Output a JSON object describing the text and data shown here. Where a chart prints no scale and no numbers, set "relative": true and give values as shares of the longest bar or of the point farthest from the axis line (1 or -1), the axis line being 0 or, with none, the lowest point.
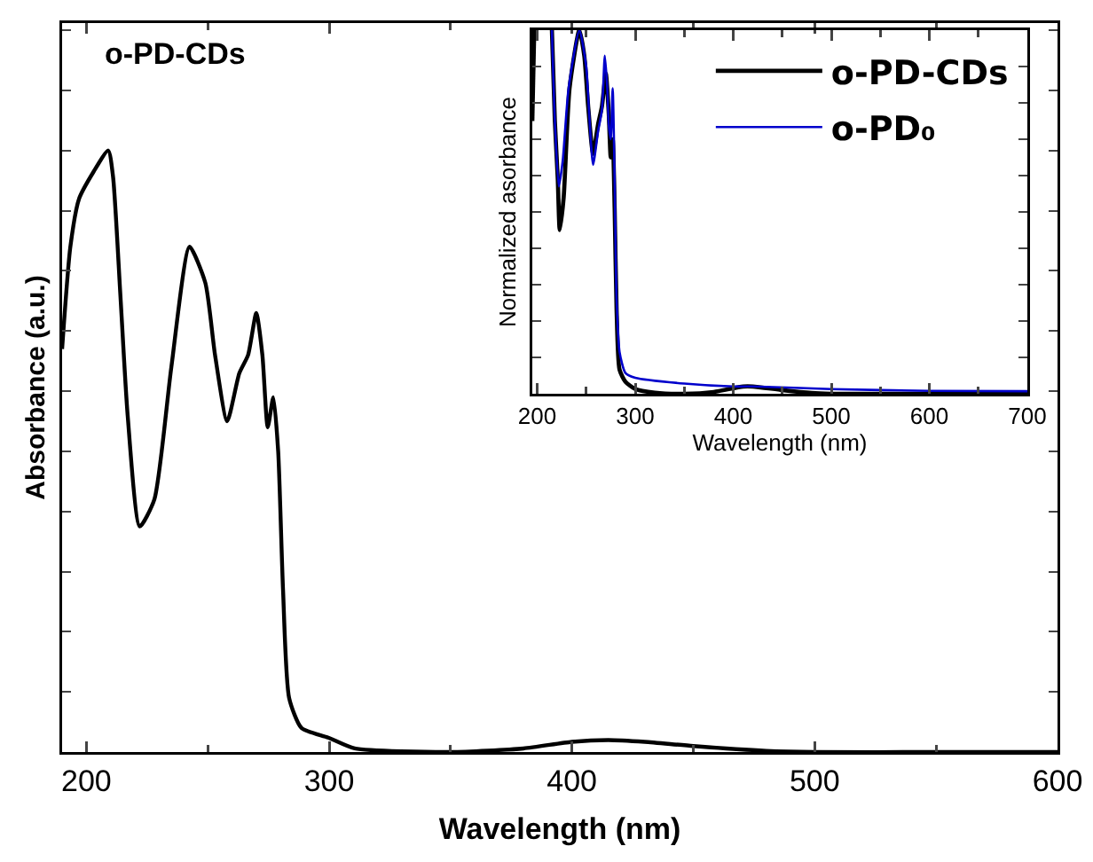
{
  "chart_data": [
    {
      "type": "line",
      "xlabel": "Wavelength (nm)",
      "ylabel": "Absorbance (a.u.)",
      "relative": true,
      "xlim": [
        190,
        600
      ],
      "xticks": [
        200,
        300,
        400,
        500,
        600
      ],
      "annotations": [
        "o-PD-CDs"
      ],
      "legend": false,
      "grid": false,
      "series": [
        {
          "color": "#000000",
          "x": [
            190,
            193.4,
            197,
            203,
            209,
            211,
            214,
            217,
            222,
            228,
            235,
            242.5,
            249,
            253,
            258,
            263,
            266.6,
            270,
            272.5,
            274.7,
            277,
            279,
            281,
            283.5,
            288.6,
            299.6,
            310.5,
            350,
            380,
            400,
            415,
            430,
            450,
            480,
            500,
            550,
            600
          ],
          "values": [
            0.67,
            0.84,
            0.92,
            0.965,
            1.0,
            0.956,
            0.76,
            0.56,
            0.375,
            0.42,
            0.64,
            0.84,
            0.78,
            0.66,
            0.55,
            0.63,
            0.66,
            0.73,
            0.66,
            0.54,
            0.59,
            0.5,
            0.27,
            0.09,
            0.04,
            0.024,
            0.006,
            0.0,
            0.006,
            0.017,
            0.02,
            0.017,
            0.01,
            0.002,
            0.0,
            0.0,
            0.0
          ]
        }
      ]
    },
    {
      "type": "line",
      "xlabel": "Wavelength (nm)",
      "ylabel": "Normalized asorbance",
      "relative": true,
      "xlim": [
        195,
        700
      ],
      "xticks": [
        200,
        300,
        400,
        500,
        600,
        700
      ],
      "legend": "top right",
      "grid": false,
      "series": [
        {
          "name": "o-PD-CDs",
          "color": "#000000",
          "x": [
            195,
            197,
            205,
            215,
            218,
            221,
            223,
            227,
            233,
            243,
            248,
            252,
            257,
            262,
            266,
            270,
            273,
            275,
            277,
            279,
            281,
            284,
            290,
            300,
            320,
            350,
            380,
            410,
            420,
            450,
            480,
            500,
            600,
            700
          ],
          "values": [
            0.75,
            1.0,
            null,
            1.0,
            0.75,
            0.59,
            0.45,
            0.54,
            0.84,
            1.0,
            0.93,
            0.79,
            0.66,
            0.74,
            0.79,
            0.88,
            0.77,
            0.65,
            0.7,
            0.51,
            0.23,
            0.066,
            0.033,
            0.013,
            0.003,
            0.0,
            0.005,
            0.02,
            0.02,
            0.01,
            0.002,
            0.0,
            0.0,
            0.0
          ]
        },
        {
          "name": "o-PD₀",
          "color": "#0000cc",
          "x": [
            215,
            218,
            222,
            226,
            232,
            243,
            250,
            253,
            257,
            262,
            266,
            269,
            271.5,
            273,
            275,
            277,
            279,
            281,
            284,
            290,
            300,
            350,
            400,
            420,
            500,
            600,
            700
          ],
          "values": [
            1.0,
            0.75,
            0.57,
            0.64,
            0.84,
            1.0,
            0.9,
            0.77,
            0.63,
            0.72,
            0.78,
            0.93,
            0.84,
            0.74,
            0.7,
            0.84,
            0.59,
            0.26,
            0.115,
            0.057,
            0.044,
            0.028,
            0.02,
            0.02,
            0.013,
            0.008,
            0.007
          ]
        }
      ]
    }
  ]
}
